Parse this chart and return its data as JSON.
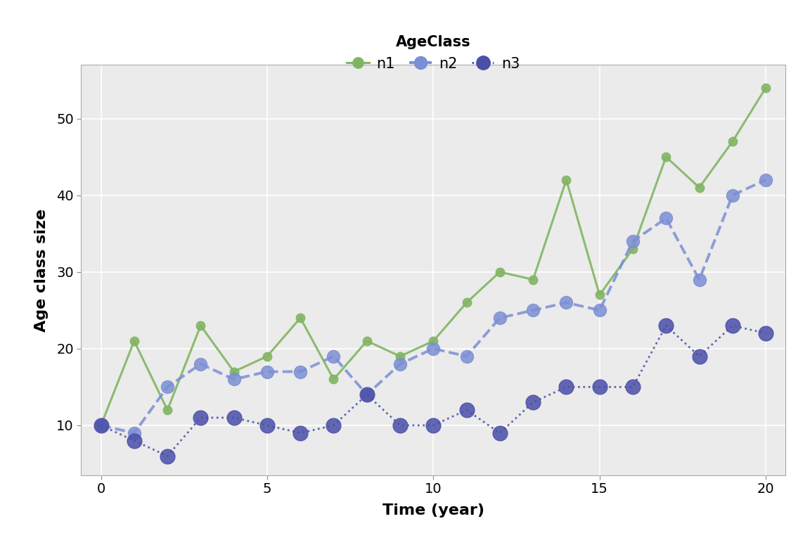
{
  "time": [
    0,
    1,
    2,
    3,
    4,
    5,
    6,
    7,
    8,
    9,
    10,
    11,
    12,
    13,
    14,
    15,
    16,
    17,
    18,
    19,
    20
  ],
  "n1": [
    10,
    21,
    12,
    23,
    17,
    19,
    24,
    16,
    21,
    19,
    21,
    26,
    30,
    29,
    42,
    27,
    33,
    45,
    41,
    47,
    54
  ],
  "n2": [
    10,
    9,
    15,
    18,
    16,
    17,
    17,
    19,
    14,
    18,
    20,
    19,
    24,
    25,
    26,
    25,
    34,
    37,
    29,
    40,
    42
  ],
  "n3": [
    10,
    8,
    6,
    11,
    11,
    10,
    9,
    10,
    14,
    10,
    10,
    12,
    9,
    13,
    15,
    15,
    15,
    23,
    19,
    23,
    22
  ],
  "color_n1": "#82b563",
  "color_n2": "#7b8fd4",
  "color_n3": "#4a4fa8",
  "bg_color": "#ebebeb",
  "panel_bg": "#ebebeb",
  "xlabel": "Time (year)",
  "ylabel": "Age class size",
  "legend_title": "AgeClass",
  "xlim": [
    -0.6,
    20.6
  ],
  "ylim": [
    3.5,
    57
  ],
  "yticks": [
    10,
    20,
    30,
    40,
    50
  ],
  "xticks": [
    0,
    5,
    10,
    15,
    20
  ],
  "xlabel_fontsize": 16,
  "ylabel_fontsize": 16,
  "tick_fontsize": 14,
  "legend_fontsize": 15,
  "legend_title_fontsize": 15
}
